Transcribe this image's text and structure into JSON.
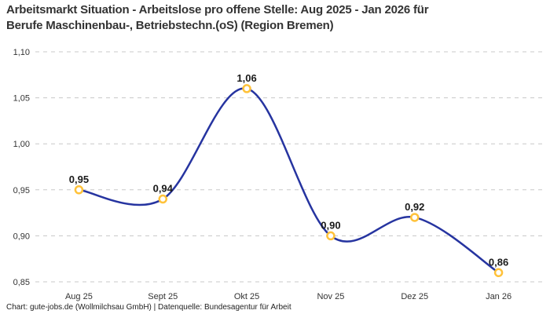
{
  "header": {
    "title": "Arbeitsmarkt Situation - Arbeitslose pro offene Stelle: Aug 2025 - Jan 2026 für\nBerufe Maschinenbau-, Betriebstechn.(oS) (Region Bremen)"
  },
  "footer": {
    "credit": "Chart: gute-jobs.de (Wollmilchsau GmbH) | Datenquelle: Bundesagentur für Arbeit"
  },
  "chart_data": {
    "type": "line",
    "title": "Arbeitsmarkt Situation - Arbeitslose pro offene Stelle: Aug 2025 - Jan 2026 für Berufe Maschinenbau-, Betriebstechn.(oS) (Region Bremen)",
    "categories": [
      "Aug 25",
      "Sept 25",
      "Okt 25",
      "Nov 25",
      "Dez 25",
      "Jan 26"
    ],
    "values": [
      0.95,
      0.94,
      1.06,
      0.9,
      0.92,
      0.86
    ],
    "value_labels": [
      "0,95",
      "0,94",
      "1,06",
      "0,90",
      "0,92",
      "0,86"
    ],
    "ylim": [
      0.85,
      1.1
    ],
    "yticks": [
      1.1,
      1.05,
      1.0,
      0.95,
      0.9,
      0.85
    ],
    "ytick_labels": [
      "1,10",
      "1,05",
      "1,00",
      "0,95",
      "0,90",
      "0,85"
    ],
    "xlabel": "",
    "ylabel": "",
    "grid": "horizontal-dashed",
    "legend": "none",
    "line_color": "#2634a0",
    "marker_ring_color": "#ffc23a",
    "marker_fill_color": "#ffffff",
    "gridline_color": "#c8c8c8"
  }
}
